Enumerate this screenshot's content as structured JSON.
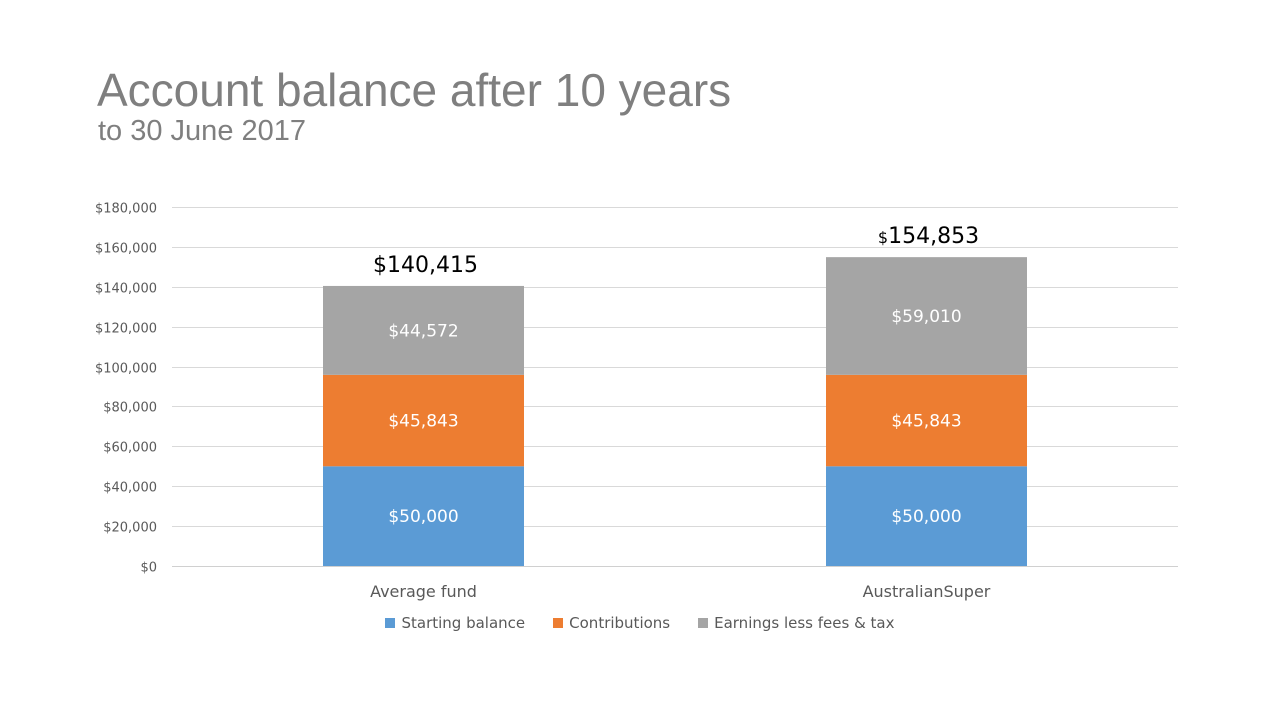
{
  "slide": {
    "title": "Account balance after 10 years",
    "subtitle": "to 30 June 2017"
  },
  "chart_data": {
    "type": "bar",
    "stacked": true,
    "title": "Account balance after 10 years",
    "subtitle": "to 30 June 2017",
    "categories": [
      "Average fund",
      "AustralianSuper"
    ],
    "series": [
      {
        "name": "Starting balance",
        "values": [
          50000,
          50000
        ],
        "labels": [
          "$50,000",
          "$50,000"
        ],
        "color": "#5b9bd5"
      },
      {
        "name": "Contributions",
        "values": [
          45843,
          45843
        ],
        "labels": [
          "$45,843",
          "$45,843"
        ],
        "color": "#ed7d31"
      },
      {
        "name": "Earnings less fees & tax",
        "values": [
          44572,
          59010
        ],
        "labels": [
          "$44,572",
          "$59,010"
        ],
        "color": "#a5a5a5"
      }
    ],
    "totals": [
      {
        "prefix": "",
        "value": "$140,415"
      },
      {
        "prefix": "$",
        "value": "154,853"
      }
    ],
    "ylim": [
      0,
      180000
    ],
    "yticks": [
      0,
      20000,
      40000,
      60000,
      80000,
      100000,
      120000,
      140000,
      160000,
      180000
    ],
    "ytick_labels": [
      "$0",
      "$20,000",
      "$40,000",
      "$60,000",
      "$80,000",
      "$100,000",
      "$120,000",
      "$140,000",
      "$160,000",
      "$180,000"
    ],
    "xlabel": "",
    "ylabel": "",
    "grid": true,
    "legend_position": "bottom"
  }
}
